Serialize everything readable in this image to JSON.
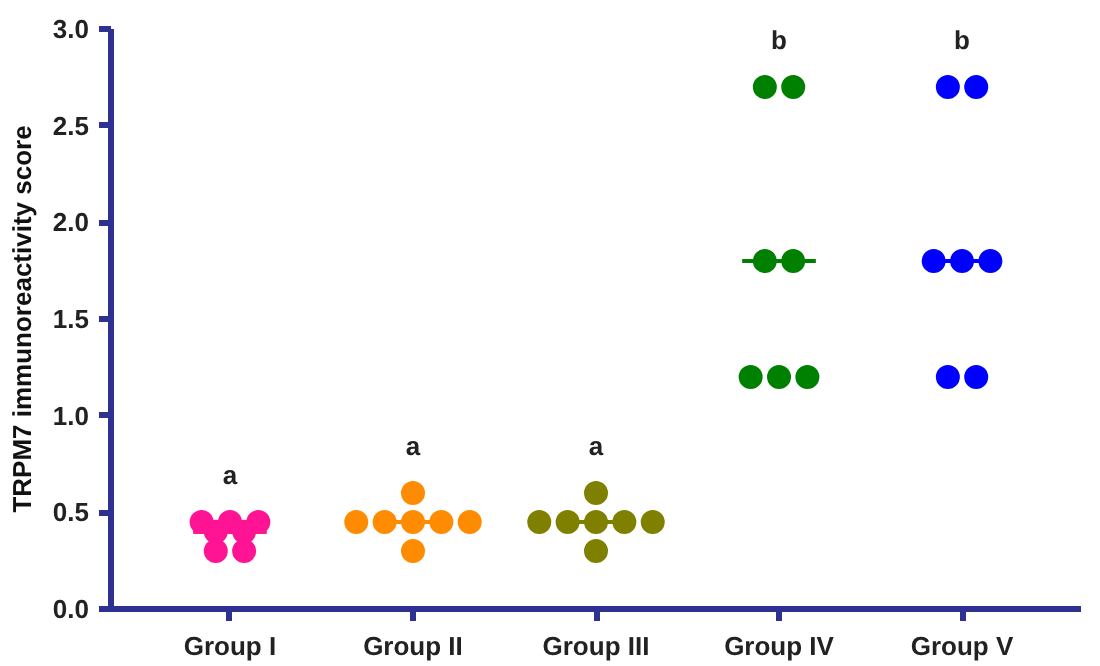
{
  "chart_data": {
    "type": "scatter",
    "ylabel": "TRPM7 immunoreactivity score",
    "categories": [
      "Group I",
      "Group II",
      "Group III",
      "Group IV",
      "Group V"
    ],
    "ylim": [
      0,
      3.0
    ],
    "yticks": [
      {
        "value": 0,
        "label": "0.0"
      },
      {
        "value": 0.5,
        "label": "0.5"
      },
      {
        "value": 1,
        "label": "1.0"
      },
      {
        "value": 1.5,
        "label": "1.5"
      },
      {
        "value": 2,
        "label": "2.0"
      },
      {
        "value": 2.5,
        "label": "2.5"
      },
      {
        "value": 3,
        "label": "3.0"
      }
    ],
    "grid": false,
    "marker": "circle",
    "series": [
      {
        "color": "#ff1493",
        "x": [
          "Group I",
          "Group I",
          "Group I",
          "Group I",
          "Group I",
          "Group I",
          "Group I"
        ],
        "values": [
          0.45,
          0.45,
          0.4,
          0.4,
          0.45,
          0.3,
          0.3
        ]
      },
      {
        "color": "#ff8c00",
        "x": [
          "Group II",
          "Group II",
          "Group II",
          "Group II",
          "Group II",
          "Group II",
          "Group II"
        ],
        "values": [
          0.6,
          0.45,
          0.45,
          0.45,
          0.45,
          0.45,
          0.3
        ]
      },
      {
        "color": "#808000",
        "x": [
          "Group III",
          "Group III",
          "Group III",
          "Group III",
          "Group III",
          "Group III",
          "Group III"
        ],
        "values": [
          0.6,
          0.45,
          0.45,
          0.45,
          0.45,
          0.45,
          0.3
        ]
      },
      {
        "color": "#008000",
        "x": [
          "Group IV",
          "Group IV",
          "Group IV",
          "Group IV",
          "Group IV",
          "Group IV",
          "Group IV"
        ],
        "values": [
          2.7,
          2.7,
          1.8,
          1.8,
          1.2,
          1.2,
          1.2
        ]
      },
      {
        "color": "#0000ff",
        "x": [
          "Group V",
          "Group V",
          "Group V",
          "Group V",
          "Group V",
          "Group V",
          "Group V"
        ],
        "values": [
          2.7,
          2.7,
          1.8,
          1.8,
          1.8,
          1.2,
          1.2
        ]
      },
      {
        "type": "box",
        "colors": [
          "#ff1493",
          "#ff8c00",
          "#808000",
          "#008000",
          "#0000ff"
        ],
        "boxes": [
          {
            "low": 0.4,
            "q1": 0.4,
            "median": 0.4,
            "q3": 0.4,
            "high": 0.4
          },
          {
            "low": 0.45,
            "q1": 0.45,
            "median": 0.45,
            "q3": 0.45,
            "high": 0.45
          },
          {
            "low": 0.45,
            "q1": 0.45,
            "median": 0.45,
            "q3": 0.45,
            "high": 0.45
          },
          {
            "low": 1.8,
            "q1": 1.8,
            "median": 1.8,
            "q3": 1.8,
            "high": 1.8
          },
          {
            "low": 1.8,
            "q1": 1.8,
            "median": 1.8,
            "q3": 1.8,
            "high": 1.8
          }
        ]
      }
    ],
    "annotations": [
      "a",
      "a",
      "a",
      "b",
      "b"
    ]
  }
}
